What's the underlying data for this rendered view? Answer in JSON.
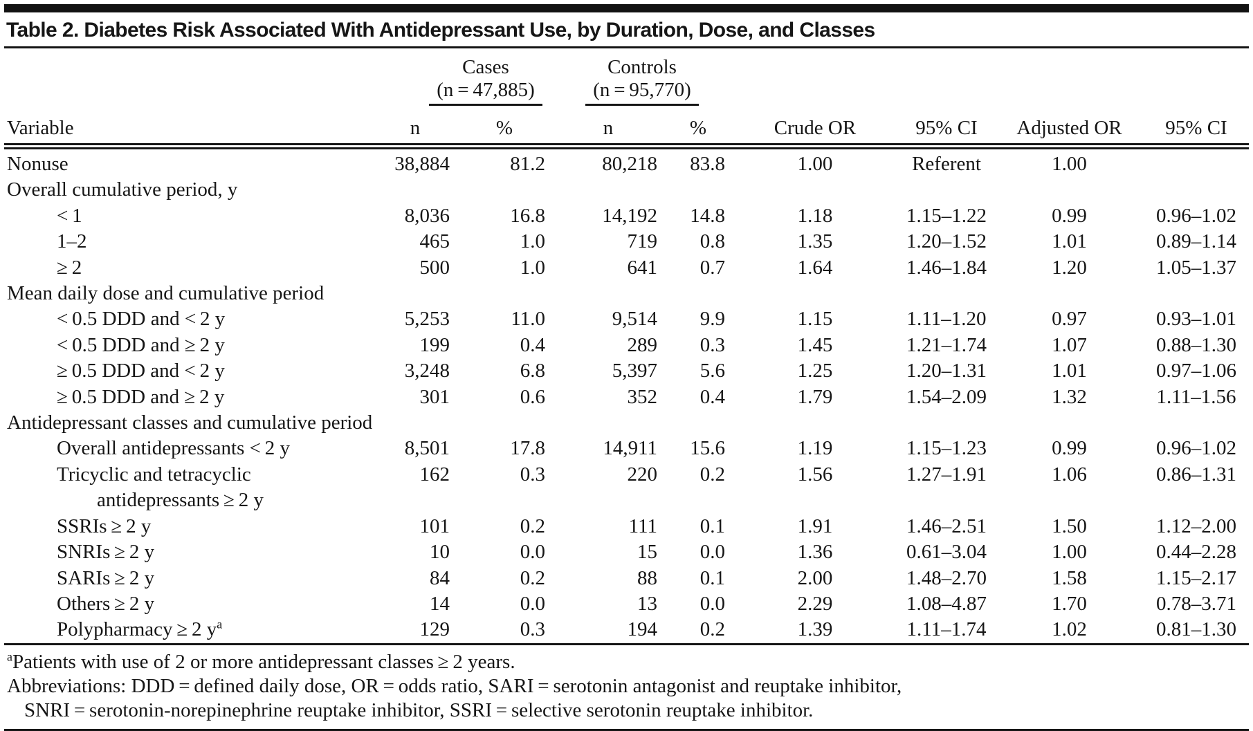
{
  "title": "Table 2. Diabetes Risk Associated With Antidepressant Use, by Duration, Dose, and Classes",
  "table": {
    "header": {
      "variable_label": "Variable",
      "cases": {
        "label": "Cases",
        "n": "(n = 47,885)"
      },
      "controls": {
        "label": "Controls",
        "n": "(n = 95,770)"
      },
      "sub": {
        "n1": "n",
        "p1": "%",
        "n2": "n",
        "p2": "%"
      },
      "crude_or": "Crude OR",
      "ci1": "95% CI",
      "adjusted_or": "Adjusted OR",
      "ci2": "95% CI"
    },
    "rows": [
      {
        "label": "Nonuse",
        "indent": 0,
        "values": [
          "38,884",
          "81.2",
          "80,218",
          "83.8",
          "1.00",
          "Referent",
          "1.00",
          ""
        ]
      },
      {
        "label": "Overall cumulative period, y",
        "indent": 0,
        "section": true,
        "values": [
          "",
          "",
          "",
          "",
          "",
          "",
          "",
          ""
        ]
      },
      {
        "label": "< 1",
        "indent": 1,
        "values": [
          "8,036",
          "16.8",
          "14,192",
          "14.8",
          "1.18",
          "1.15–1.22",
          "0.99",
          "0.96–1.02"
        ]
      },
      {
        "label": "1–2",
        "indent": 1,
        "values": [
          "465",
          "1.0",
          "719",
          "0.8",
          "1.35",
          "1.20–1.52",
          "1.01",
          "0.89–1.14"
        ]
      },
      {
        "label": "≥ 2",
        "indent": 1,
        "values": [
          "500",
          "1.0",
          "641",
          "0.7",
          "1.64",
          "1.46–1.84",
          "1.20",
          "1.05–1.37"
        ]
      },
      {
        "label": "Mean daily dose and cumulative period",
        "indent": 0,
        "section": true,
        "values": [
          "",
          "",
          "",
          "",
          "",
          "",
          "",
          ""
        ]
      },
      {
        "label": "< 0.5 DDD and < 2 y",
        "indent": 1,
        "values": [
          "5,253",
          "11.0",
          "9,514",
          "9.9",
          "1.15",
          "1.11–1.20",
          "0.97",
          "0.93–1.01"
        ]
      },
      {
        "label": "< 0.5 DDD and ≥ 2 y",
        "indent": 1,
        "values": [
          "199",
          "0.4",
          "289",
          "0.3",
          "1.45",
          "1.21–1.74",
          "1.07",
          "0.88–1.30"
        ]
      },
      {
        "label": "≥ 0.5 DDD and < 2 y",
        "indent": 1,
        "values": [
          "3,248",
          "6.8",
          "5,397",
          "5.6",
          "1.25",
          "1.20–1.31",
          "1.01",
          "0.97–1.06"
        ]
      },
      {
        "label": "≥ 0.5 DDD and ≥ 2 y",
        "indent": 1,
        "values": [
          "301",
          "0.6",
          "352",
          "0.4",
          "1.79",
          "1.54–2.09",
          "1.32",
          "1.11–1.56"
        ]
      },
      {
        "label": "Antidepressant classes and cumulative period",
        "indent": 0,
        "section": true,
        "values": [
          "",
          "",
          "",
          "",
          "",
          "",
          "",
          ""
        ]
      },
      {
        "label": "Overall antidepressants < 2 y",
        "indent": 1,
        "values": [
          "8,501",
          "17.8",
          "14,911",
          "15.6",
          "1.19",
          "1.15–1.23",
          "0.99",
          "0.96–1.02"
        ]
      },
      {
        "label": "Tricyclic and tetracyclic",
        "label2": "antidepressants ≥ 2 y",
        "indent": 1,
        "values": [
          "162",
          "0.3",
          "220",
          "0.2",
          "1.56",
          "1.27–1.91",
          "1.06",
          "0.86–1.31"
        ]
      },
      {
        "label": "SSRIs ≥ 2 y",
        "indent": 1,
        "values": [
          "101",
          "0.2",
          "111",
          "0.1",
          "1.91",
          "1.46–2.51",
          "1.50",
          "1.12–2.00"
        ]
      },
      {
        "label": "SNRIs ≥ 2 y",
        "indent": 1,
        "values": [
          "10",
          "0.0",
          "15",
          "0.0",
          "1.36",
          "0.61–3.04",
          "1.00",
          "0.44–2.28"
        ]
      },
      {
        "label": "SARIs ≥ 2 y",
        "indent": 1,
        "values": [
          "84",
          "0.2",
          "88",
          "0.1",
          "2.00",
          "1.48–2.70",
          "1.58",
          "1.15–2.17"
        ]
      },
      {
        "label": "Others ≥ 2 y",
        "indent": 1,
        "values": [
          "14",
          "0.0",
          "13",
          "0.0",
          "2.29",
          "1.08–4.87",
          "1.70",
          "0.78–3.71"
        ]
      },
      {
        "label": "Polypharmacy ≥ 2 y",
        "sup": "a",
        "indent": 1,
        "values": [
          "129",
          "0.3",
          "194",
          "0.2",
          "1.39",
          "1.11–1.74",
          "1.02",
          "0.81–1.30"
        ]
      }
    ]
  },
  "footnotes": {
    "note_a_sup": "a",
    "note_a_text": "Patients with use of 2 or more antidepressant classes ≥ 2 years.",
    "abbrev_line_1": "Abbreviations: DDD = defined daily dose, OR = odds ratio, SARI = serotonin antagonist and reuptake inhibitor,",
    "abbrev_line_2": "SNRI = serotonin-norepinephrine reuptake inhibitor, SSRI = selective serotonin reuptake inhibitor."
  },
  "colors": {
    "background": "#ffffff",
    "text": "#161616",
    "rule": "#161616"
  }
}
